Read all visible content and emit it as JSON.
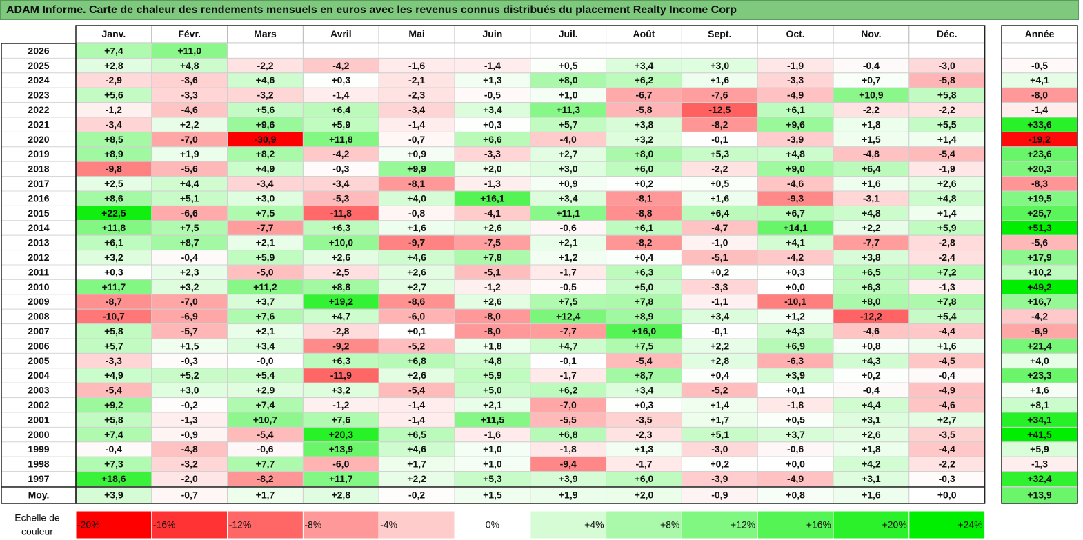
{
  "title": "ADAM Informe. Carte de chaleur des rendements mensuels en euros avec les revenus connus distribués du placement Realty Income Corp",
  "chart_data": {
    "type": "heatmap",
    "months": [
      "Janv.",
      "Févr.",
      "Mars",
      "Avril",
      "Mai",
      "Juin",
      "Juil.",
      "Août",
      "Sept.",
      "Oct.",
      "Nov.",
      "Déc."
    ],
    "year_header": "Année",
    "rows": [
      {
        "year": "2026",
        "values": [
          "+7,4",
          "+11,0",
          "",
          "",
          "",
          "",
          "",
          "",
          "",
          "",
          "",
          ""
        ],
        "annual": ""
      },
      {
        "year": "2025",
        "values": [
          "+2,8",
          "+4,8",
          "-2,2",
          "-4,2",
          "-1,6",
          "-1,4",
          "+0,5",
          "+3,4",
          "+3,0",
          "-1,9",
          "-0,4",
          "-3,0"
        ],
        "annual": "-0,5"
      },
      {
        "year": "2024",
        "values": [
          "-2,9",
          "-3,6",
          "+4,6",
          "+0,3",
          "-2,1",
          "+1,3",
          "+8,0",
          "+6,2",
          "+1,6",
          "-3,3",
          "+0,7",
          "-5,8"
        ],
        "annual": "+4,1"
      },
      {
        "year": "2023",
        "values": [
          "+5,6",
          "-3,3",
          "-3,2",
          "-1,4",
          "-2,3",
          "-0,5",
          "+1,0",
          "-6,7",
          "-7,6",
          "-4,9",
          "+10,9",
          "+5,8"
        ],
        "annual": "-8,0"
      },
      {
        "year": "2022",
        "values": [
          "-1,2",
          "-4,6",
          "+5,6",
          "+6,4",
          "-3,4",
          "+3,4",
          "+11,3",
          "-5,8",
          "-12,5",
          "+6,1",
          "-2,2",
          "-2,2"
        ],
        "annual": "-1,4"
      },
      {
        "year": "2021",
        "values": [
          "-3,4",
          "+2,2",
          "+9,6",
          "+5,9",
          "-1,4",
          "+0,3",
          "+5,7",
          "+3,8",
          "-8,2",
          "+9,6",
          "+1,8",
          "+5,5"
        ],
        "annual": "+33,6"
      },
      {
        "year": "2020",
        "values": [
          "+8,5",
          "-7,0",
          "-30,9",
          "+11,8",
          "-0,7",
          "+6,6",
          "-4,0",
          "+3,2",
          "-0,1",
          "-3,9",
          "+1,5",
          "+1,4"
        ],
        "annual": "-19,2"
      },
      {
        "year": "2019",
        "values": [
          "+8,9",
          "+1,9",
          "+8,2",
          "-4,2",
          "+0,9",
          "-3,3",
          "+2,7",
          "+8,0",
          "+5,3",
          "+4,8",
          "-4,8",
          "-5,4"
        ],
        "annual": "+23,6"
      },
      {
        "year": "2018",
        "values": [
          "-9,8",
          "-5,6",
          "+4,9",
          "-0,3",
          "+9,9",
          "+2,0",
          "+3,0",
          "+6,0",
          "-2,2",
          "+9,0",
          "+6,4",
          "-1,9"
        ],
        "annual": "+20,3"
      },
      {
        "year": "2017",
        "values": [
          "+2,5",
          "+4,4",
          "-3,4",
          "-3,4",
          "-8,1",
          "-1,3",
          "+0,9",
          "+0,2",
          "+0,5",
          "-4,6",
          "+1,6",
          "+2,6"
        ],
        "annual": "-8,3"
      },
      {
        "year": "2016",
        "values": [
          "+8,6",
          "+5,1",
          "+3,0",
          "-5,3",
          "+4,0",
          "+16,1",
          "+3,4",
          "-8,1",
          "+1,6",
          "-9,3",
          "-3,1",
          "+4,8"
        ],
        "annual": "+19,5"
      },
      {
        "year": "2015",
        "values": [
          "+22,5",
          "-6,6",
          "+7,5",
          "-11,8",
          "-0,8",
          "-4,1",
          "+11,1",
          "-8,8",
          "+6,4",
          "+6,7",
          "+4,8",
          "+1,4"
        ],
        "annual": "+25,7"
      },
      {
        "year": "2014",
        "values": [
          "+11,8",
          "+7,5",
          "-7,7",
          "+6,3",
          "+1,6",
          "+2,6",
          "-0,6",
          "+6,1",
          "-4,7",
          "+14,1",
          "+2,2",
          "+5,9"
        ],
        "annual": "+51,3"
      },
      {
        "year": "2013",
        "values": [
          "+6,1",
          "+8,7",
          "+2,1",
          "+10,0",
          "-9,7",
          "-7,5",
          "+2,1",
          "-8,2",
          "-1,0",
          "+4,1",
          "-7,7",
          "-2,8"
        ],
        "annual": "-5,6"
      },
      {
        "year": "2012",
        "values": [
          "+3,2",
          "-0,4",
          "+5,9",
          "+2,6",
          "+4,6",
          "+7,8",
          "+1,2",
          "+0,4",
          "-5,1",
          "-4,2",
          "+3,8",
          "-2,4"
        ],
        "annual": "+17,9"
      },
      {
        "year": "2011",
        "values": [
          "+0,3",
          "+2,3",
          "-5,0",
          "-2,5",
          "+2,6",
          "-5,1",
          "-1,7",
          "+6,3",
          "+0,2",
          "+0,3",
          "+6,5",
          "+7,2"
        ],
        "annual": "+10,2"
      },
      {
        "year": "2010",
        "values": [
          "+11,7",
          "+3,2",
          "+11,2",
          "+8,8",
          "+2,7",
          "-1,2",
          "-0,5",
          "+5,0",
          "-3,3",
          "+0,0",
          "+6,3",
          "-1,3"
        ],
        "annual": "+49,2"
      },
      {
        "year": "2009",
        "values": [
          "-8,7",
          "-7,0",
          "+3,7",
          "+19,2",
          "-8,6",
          "+2,6",
          "+7,5",
          "+7,8",
          "-1,1",
          "-10,1",
          "+8,0",
          "+7,8"
        ],
        "annual": "+16,7"
      },
      {
        "year": "2008",
        "values": [
          "-10,7",
          "-6,9",
          "+7,6",
          "+4,7",
          "-6,0",
          "-8,0",
          "+12,4",
          "+8,9",
          "+3,4",
          "+1,2",
          "-12,2",
          "+5,4"
        ],
        "annual": "-4,2"
      },
      {
        "year": "2007",
        "values": [
          "+5,8",
          "-5,7",
          "+2,1",
          "-2,8",
          "+0,1",
          "-8,0",
          "-7,7",
          "+16,0",
          "-0,1",
          "+4,3",
          "-4,6",
          "-4,4"
        ],
        "annual": "-6,9"
      },
      {
        "year": "2006",
        "values": [
          "+5,7",
          "+1,5",
          "+3,4",
          "-9,2",
          "-5,2",
          "+1,8",
          "+4,7",
          "+7,5",
          "+2,2",
          "+6,9",
          "+0,8",
          "+1,6"
        ],
        "annual": "+21,4"
      },
      {
        "year": "2005",
        "values": [
          "-3,3",
          "-0,3",
          "-0,0",
          "+6,3",
          "+6,8",
          "+4,8",
          "-0,1",
          "-5,4",
          "+2,8",
          "-6,3",
          "+4,3",
          "-4,5"
        ],
        "annual": "+4,0"
      },
      {
        "year": "2004",
        "values": [
          "+4,9",
          "+5,2",
          "+5,4",
          "-11,9",
          "+2,6",
          "+5,9",
          "-1,7",
          "+8,7",
          "+0,4",
          "+3,9",
          "+0,2",
          "-0,4"
        ],
        "annual": "+23,3"
      },
      {
        "year": "2003",
        "values": [
          "-5,4",
          "+3,0",
          "+2,9",
          "+3,2",
          "-5,4",
          "+5,0",
          "+6,2",
          "+3,4",
          "-5,2",
          "+0,1",
          "-0,4",
          "-4,9"
        ],
        "annual": "+1,6"
      },
      {
        "year": "2002",
        "values": [
          "+9,2",
          "-0,2",
          "+7,4",
          "-1,2",
          "-1,4",
          "+2,1",
          "-7,0",
          "+0,3",
          "+1,4",
          "-1,8",
          "+4,4",
          "-4,6"
        ],
        "annual": "+8,1"
      },
      {
        "year": "2001",
        "values": [
          "+5,8",
          "-1,3",
          "+10,7",
          "+7,6",
          "-1,4",
          "+11,5",
          "-5,5",
          "-3,5",
          "+1,7",
          "+0,5",
          "+3,1",
          "+2,7"
        ],
        "annual": "+34,1"
      },
      {
        "year": "2000",
        "values": [
          "+7,4",
          "-0,9",
          "-5,4",
          "+20,3",
          "+6,5",
          "-1,6",
          "+6,8",
          "-2,3",
          "+5,1",
          "+3,7",
          "+2,6",
          "-3,5"
        ],
        "annual": "+41,5"
      },
      {
        "year": "1999",
        "values": [
          "-0,4",
          "-4,8",
          "-0,6",
          "+13,9",
          "+4,6",
          "+1,0",
          "-1,8",
          "+1,3",
          "-3,0",
          "-0,6",
          "+1,8",
          "-4,4"
        ],
        "annual": "+5,9"
      },
      {
        "year": "1998",
        "values": [
          "+7,3",
          "-3,2",
          "+7,7",
          "-6,0",
          "+1,7",
          "+1,0",
          "-9,4",
          "-1,7",
          "+0,2",
          "+0,0",
          "+4,2",
          "-2,2"
        ],
        "annual": "-1,3"
      },
      {
        "year": "1997",
        "values": [
          "+18,6",
          "-2,0",
          "-8,2",
          "+11,7",
          "+2,2",
          "+5,3",
          "+3,9",
          "+6,0",
          "-3,9",
          "-4,9",
          "+3,1",
          "-0,3"
        ],
        "annual": "+32,4"
      }
    ],
    "average": {
      "label": "Moy.",
      "values": [
        "+3,9",
        "-0,7",
        "+1,7",
        "+2,8",
        "-0,2",
        "+1,5",
        "+1,9",
        "+2,0",
        "-0,9",
        "+0,8",
        "+1,6",
        "+0,0"
      ],
      "annual": "+13,9"
    },
    "scale": {
      "label_line1": "Echelle de",
      "label_line2": "couleur",
      "steps": [
        {
          "label": "-20%",
          "value": -20
        },
        {
          "label": "-16%",
          "value": -16
        },
        {
          "label": "-12%",
          "value": -12
        },
        {
          "label": "-8%",
          "value": -8
        },
        {
          "label": "-4%",
          "value": -4
        },
        {
          "label": "0%",
          "value": 0
        },
        {
          "label": "+4%",
          "value": 4
        },
        {
          "label": "+8%",
          "value": 8
        },
        {
          "label": "+12%",
          "value": 12
        },
        {
          "label": "+16%",
          "value": 16
        },
        {
          "label": "+20%",
          "value": 20
        },
        {
          "label": "+24%",
          "value": 24
        }
      ]
    },
    "colors": {
      "negative_max": "#ff0000",
      "positive_max": "#00ee00",
      "neutral": "#ffffff",
      "title_bg": "#7fc97f"
    },
    "color_scale_min": -20,
    "color_scale_max": 24
  }
}
